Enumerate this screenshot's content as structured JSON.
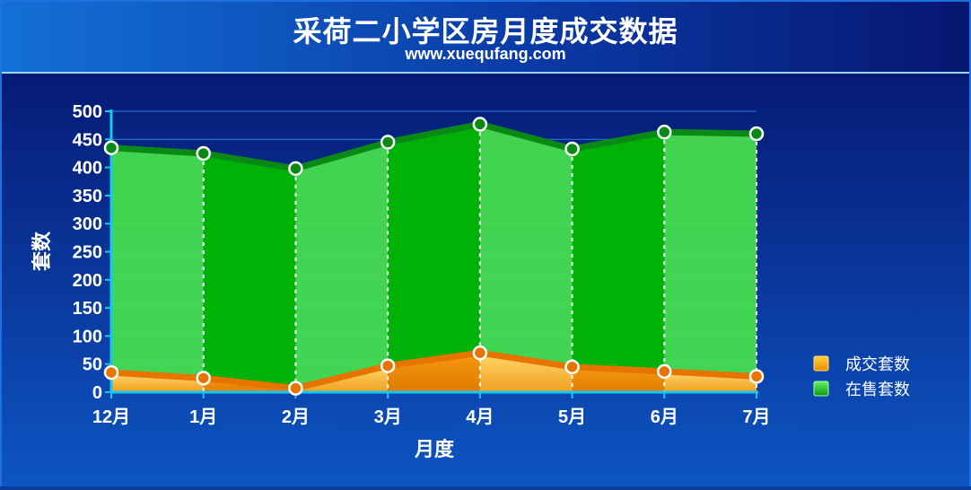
{
  "header": {
    "title": "采荷二小学区房月度成交数据",
    "subtitle": "www.xuequfang.com"
  },
  "chart_data": {
    "type": "area",
    "categories": [
      "12月",
      "1月",
      "2月",
      "3月",
      "4月",
      "5月",
      "6月",
      "7月"
    ],
    "series": [
      {
        "name": "成交套数",
        "values": [
          35,
          25,
          7,
          47,
          70,
          45,
          37,
          28
        ],
        "color": "#f08a00"
      },
      {
        "name": "在售套数",
        "values": [
          435,
          425,
          398,
          445,
          477,
          433,
          463,
          460
        ],
        "color": "#18b820"
      }
    ],
    "title": "采荷二小学区房月度成交数据",
    "xlabel": "月度",
    "ylabel": "套数",
    "ylim": [
      0,
      500
    ],
    "yticks": [
      0,
      50,
      100,
      150,
      200,
      250,
      300,
      350,
      400,
      450,
      500
    ],
    "stacked": false,
    "grid": "horizontal",
    "legend_position": "right"
  },
  "colors": {
    "axis": "#16c8f0",
    "green_light": "#48e24c",
    "green_dark": "#00b800",
    "orange": "#f08a00",
    "background": "#0a3aa0"
  }
}
